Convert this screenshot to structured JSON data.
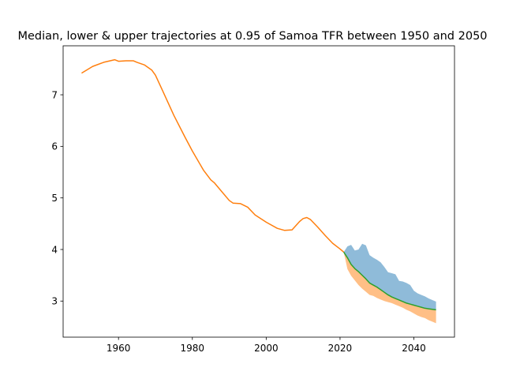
{
  "chart_data": {
    "type": "line",
    "title": "Median, lower & upper trajectories at 0.95 of Samoa TFR between 1950 and 2050",
    "xlabel": "",
    "ylabel": "",
    "xlim": [
      1945,
      2051
    ],
    "ylim": [
      2.3,
      7.95
    ],
    "xticks": [
      1960,
      1980,
      2000,
      2020,
      2040
    ],
    "yticks": [
      3,
      4,
      5,
      6,
      7
    ],
    "grid": false,
    "legend": "none",
    "colors": {
      "historical": "#ff7f0e",
      "median": "#2ca02c",
      "upper_band": "#1f77b4",
      "lower_band": "#ff7f0e"
    },
    "series": [
      {
        "kind": "line",
        "role": "historical",
        "x": [
          1950,
          1953,
          1956,
          1959,
          1960,
          1962,
          1964,
          1965,
          1967,
          1969,
          1970,
          1972,
          1975,
          1978,
          1980,
          1983,
          1985,
          1986,
          1988,
          1990,
          1991,
          1993,
          1995,
          1997,
          2000,
          2003,
          2005,
          2007,
          2009,
          2010,
          2011,
          2012,
          2014,
          2016,
          2018,
          2020,
          2021
        ],
        "y": [
          7.42,
          7.55,
          7.63,
          7.68,
          7.65,
          7.66,
          7.66,
          7.63,
          7.58,
          7.48,
          7.38,
          7.07,
          6.6,
          6.18,
          5.91,
          5.54,
          5.35,
          5.29,
          5.12,
          4.95,
          4.9,
          4.89,
          4.82,
          4.67,
          4.53,
          4.41,
          4.37,
          4.38,
          4.54,
          4.6,
          4.62,
          4.58,
          4.43,
          4.27,
          4.12,
          4.01,
          3.95
        ]
      },
      {
        "kind": "line",
        "role": "median",
        "x": [
          2021,
          2022,
          2023,
          2024,
          2025,
          2026,
          2027,
          2028,
          2029,
          2030,
          2031,
          2032,
          2033,
          2034,
          2035,
          2036,
          2037,
          2038,
          2039,
          2040,
          2041,
          2042,
          2043,
          2044,
          2045,
          2046
        ],
        "y": [
          3.95,
          3.84,
          3.71,
          3.63,
          3.57,
          3.5,
          3.43,
          3.35,
          3.31,
          3.27,
          3.22,
          3.17,
          3.12,
          3.08,
          3.05,
          3.02,
          2.99,
          2.96,
          2.94,
          2.92,
          2.9,
          2.88,
          2.86,
          2.85,
          2.84,
          2.83
        ]
      },
      {
        "kind": "band",
        "role": "upper_band",
        "x": [
          2021,
          2022,
          2023,
          2024,
          2025,
          2026,
          2027,
          2028,
          2029,
          2030,
          2031,
          2032,
          2033,
          2034,
          2035,
          2036,
          2037,
          2038,
          2039,
          2040,
          2041,
          2042,
          2043,
          2044,
          2045,
          2046
        ],
        "y_low": [
          3.95,
          3.84,
          3.71,
          3.63,
          3.57,
          3.5,
          3.43,
          3.35,
          3.31,
          3.27,
          3.22,
          3.17,
          3.12,
          3.08,
          3.05,
          3.02,
          2.99,
          2.96,
          2.94,
          2.92,
          2.9,
          2.88,
          2.86,
          2.85,
          2.84,
          2.83
        ],
        "y_high": [
          3.95,
          4.06,
          4.09,
          3.98,
          4.0,
          4.11,
          4.08,
          3.89,
          3.84,
          3.8,
          3.75,
          3.66,
          3.56,
          3.54,
          3.52,
          3.39,
          3.38,
          3.35,
          3.31,
          3.2,
          3.15,
          3.12,
          3.09,
          3.05,
          3.02,
          2.99
        ]
      },
      {
        "kind": "band",
        "role": "lower_band",
        "x": [
          2021,
          2022,
          2023,
          2024,
          2025,
          2026,
          2027,
          2028,
          2029,
          2030,
          2031,
          2032,
          2033,
          2034,
          2035,
          2036,
          2037,
          2038,
          2039,
          2040,
          2041,
          2042,
          2043,
          2044,
          2045,
          2046
        ],
        "y_low": [
          3.95,
          3.62,
          3.49,
          3.4,
          3.31,
          3.24,
          3.18,
          3.12,
          3.1,
          3.06,
          3.03,
          3.0,
          2.98,
          2.96,
          2.93,
          2.9,
          2.87,
          2.83,
          2.8,
          2.76,
          2.72,
          2.69,
          2.67,
          2.63,
          2.6,
          2.57
        ],
        "y_high": [
          3.95,
          3.84,
          3.71,
          3.63,
          3.57,
          3.5,
          3.43,
          3.35,
          3.31,
          3.27,
          3.22,
          3.17,
          3.12,
          3.08,
          3.05,
          3.02,
          2.99,
          2.96,
          2.94,
          2.92,
          2.9,
          2.88,
          2.86,
          2.85,
          2.84,
          2.83
        ]
      }
    ]
  }
}
